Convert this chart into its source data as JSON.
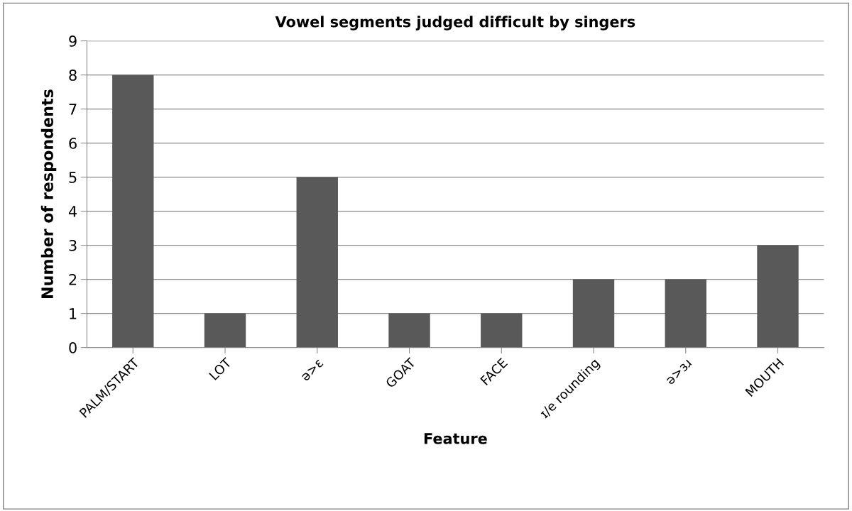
{
  "chart_data": {
    "type": "bar",
    "title": "Vowel segments judged difficult by singers",
    "xlabel": "Feature",
    "ylabel": "Number of respondents",
    "categories": [
      "PALM/START",
      "LOT",
      "ə>ɛ",
      "GOAT",
      "FACE",
      "ɪ/e rounding",
      "ə>ɜɹ",
      "MOUTH"
    ],
    "values": [
      8,
      1,
      5,
      1,
      1,
      2,
      2,
      3
    ],
    "color": "#595959",
    "ylim": [
      0,
      9
    ],
    "yticks": [
      0,
      1,
      2,
      3,
      4,
      5,
      6,
      7,
      8,
      9
    ],
    "grid": "y",
    "legend": false
  }
}
